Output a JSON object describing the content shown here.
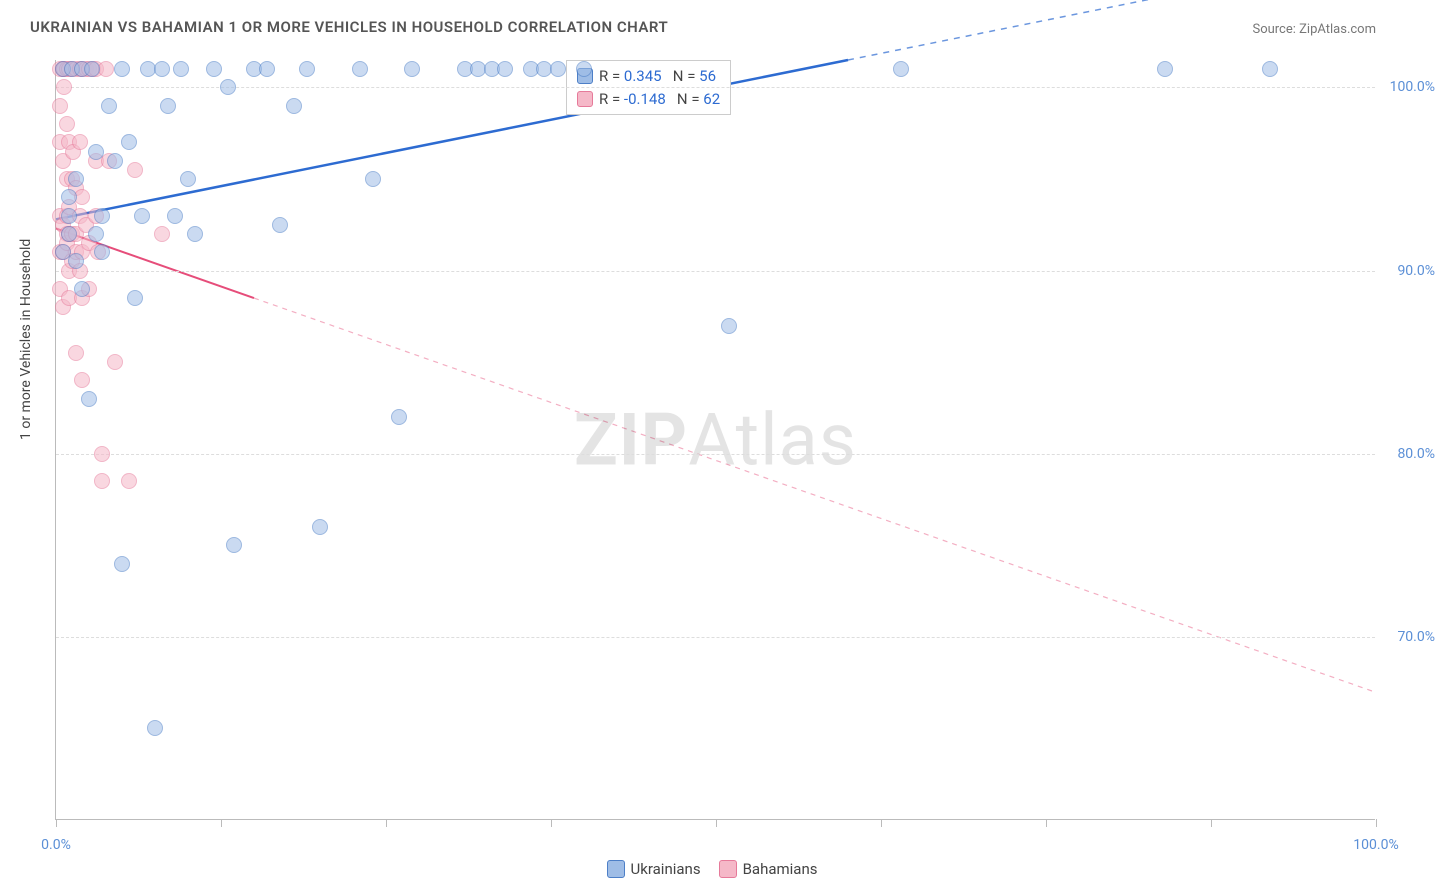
{
  "title": "UKRAINIAN VS BAHAMIAN 1 OR MORE VEHICLES IN HOUSEHOLD CORRELATION CHART",
  "source": "Source: ZipAtlas.com",
  "axis_y_title": "1 or more Vehicles in Household",
  "watermark_bold": "ZIP",
  "watermark_light": "Atlas",
  "chart": {
    "type": "scatter",
    "background_color": "#ffffff",
    "grid_color": "#dddddd",
    "axis_color": "#bbbbbb",
    "tick_label_color": "#5b8fd6",
    "xlim": [
      0,
      100
    ],
    "ylim": [
      60,
      101.5
    ],
    "y_ticks": [
      {
        "v": 70,
        "label": "70.0%"
      },
      {
        "v": 80,
        "label": "80.0%"
      },
      {
        "v": 90,
        "label": "90.0%"
      },
      {
        "v": 100,
        "label": "100.0%"
      }
    ],
    "x_ticks": [
      0,
      12.5,
      25,
      37.5,
      50,
      62.5,
      75,
      87.5,
      100
    ],
    "x_labels": [
      {
        "v": 0,
        "label": "0.0%"
      },
      {
        "v": 100,
        "label": "100.0%"
      }
    ],
    "marker_radius": 8,
    "marker_opacity": 0.55,
    "marker_stroke_width": 1.5,
    "series": [
      {
        "name": "Ukrainians",
        "fill": "#9fbde6",
        "stroke": "#4d7fc7",
        "trend": {
          "color": "#2d6bd1",
          "width": 2.5,
          "dash": "none",
          "x1": 0,
          "y1": 92.8,
          "x2": 60,
          "y2": 101.5,
          "extend_dash_to_x": 100
        },
        "r_label": "R =",
        "r_value": " 0.345",
        "n_label": "N =",
        "n_value": "56",
        "points": [
          [
            0.5,
            101
          ],
          [
            0.5,
            91
          ],
          [
            1,
            92
          ],
          [
            1,
            93
          ],
          [
            1,
            94
          ],
          [
            1.2,
            101
          ],
          [
            1.5,
            95
          ],
          [
            1.5,
            90.5
          ],
          [
            2,
            89
          ],
          [
            2,
            101
          ],
          [
            2.5,
            83
          ],
          [
            2.7,
            101
          ],
          [
            3,
            92
          ],
          [
            3,
            96.5
          ],
          [
            3.5,
            93
          ],
          [
            3.5,
            91
          ],
          [
            4,
            99
          ],
          [
            4.5,
            96
          ],
          [
            5,
            74
          ],
          [
            5,
            101
          ],
          [
            5.5,
            97
          ],
          [
            6,
            88.5
          ],
          [
            6.5,
            93
          ],
          [
            7,
            101
          ],
          [
            7.5,
            65
          ],
          [
            8,
            101
          ],
          [
            8.5,
            99
          ],
          [
            9,
            93
          ],
          [
            9.5,
            101
          ],
          [
            10,
            95
          ],
          [
            10.5,
            92
          ],
          [
            12,
            101
          ],
          [
            13,
            100
          ],
          [
            13.5,
            75
          ],
          [
            15,
            101
          ],
          [
            16,
            101
          ],
          [
            17,
            92.5
          ],
          [
            18,
            99
          ],
          [
            19,
            101
          ],
          [
            20,
            76
          ],
          [
            23,
            101
          ],
          [
            24,
            95
          ],
          [
            26,
            82
          ],
          [
            27,
            101
          ],
          [
            31,
            101
          ],
          [
            32,
            101
          ],
          [
            33,
            101
          ],
          [
            34,
            101
          ],
          [
            36,
            101
          ],
          [
            37,
            101
          ],
          [
            38,
            101
          ],
          [
            40,
            101
          ],
          [
            51,
            87
          ],
          [
            64,
            101
          ],
          [
            84,
            101
          ],
          [
            92,
            101
          ]
        ]
      },
      {
        "name": "Bahamians",
        "fill": "#f5b8c8",
        "stroke": "#e67a9a",
        "trend": {
          "color": "#e64d7a",
          "width": 2,
          "dash": "none",
          "x1": 0,
          "y1": 92.3,
          "x2": 15,
          "y2": 88.5,
          "extend_dash_to_x": 100,
          "extend_dash": "5,5"
        },
        "r_label": "R =",
        "r_value": "-0.148",
        "n_label": "N =",
        "n_value": "62",
        "points": [
          [
            0.3,
            101
          ],
          [
            0.3,
            99
          ],
          [
            0.3,
            97
          ],
          [
            0.3,
            93
          ],
          [
            0.3,
            91
          ],
          [
            0.3,
            89
          ],
          [
            0.5,
            101
          ],
          [
            0.5,
            96
          ],
          [
            0.5,
            92.5
          ],
          [
            0.5,
            91
          ],
          [
            0.5,
            88
          ],
          [
            0.6,
            101
          ],
          [
            0.6,
            100
          ],
          [
            0.8,
            101
          ],
          [
            0.8,
            98
          ],
          [
            0.8,
            95
          ],
          [
            0.8,
            93
          ],
          [
            0.8,
            92
          ],
          [
            0.8,
            91.5
          ],
          [
            1,
            101
          ],
          [
            1,
            97
          ],
          [
            1,
            93.5
          ],
          [
            1,
            92
          ],
          [
            1,
            90
          ],
          [
            1,
            88.5
          ],
          [
            1.2,
            101
          ],
          [
            1.2,
            95
          ],
          [
            1.2,
            92
          ],
          [
            1.2,
            90.5
          ],
          [
            1.3,
            96.5
          ],
          [
            1.5,
            101
          ],
          [
            1.5,
            94.5
          ],
          [
            1.5,
            92
          ],
          [
            1.5,
            91
          ],
          [
            1.5,
            85.5
          ],
          [
            1.8,
            101
          ],
          [
            1.8,
            97
          ],
          [
            1.8,
            93
          ],
          [
            1.8,
            90
          ],
          [
            2,
            101
          ],
          [
            2,
            94
          ],
          [
            2,
            91
          ],
          [
            2,
            88.5
          ],
          [
            2,
            84
          ],
          [
            2.3,
            101
          ],
          [
            2.3,
            92.5
          ],
          [
            2.5,
            101
          ],
          [
            2.5,
            91.5
          ],
          [
            2.5,
            89
          ],
          [
            2.8,
            101
          ],
          [
            3,
            101
          ],
          [
            3,
            93
          ],
          [
            3,
            96
          ],
          [
            3.2,
            91
          ],
          [
            3.5,
            78.5
          ],
          [
            3.5,
            80
          ],
          [
            3.8,
            101
          ],
          [
            4,
            96
          ],
          [
            4.5,
            85
          ],
          [
            5.5,
            78.5
          ],
          [
            6,
            95.5
          ],
          [
            8,
            92
          ]
        ]
      }
    ]
  },
  "bottom_legend": {
    "items": [
      {
        "label": "Ukrainians",
        "fill": "#9fbde6",
        "stroke": "#4d7fc7"
      },
      {
        "label": "Bahamians",
        "fill": "#f5b8c8",
        "stroke": "#e67a9a"
      }
    ]
  }
}
